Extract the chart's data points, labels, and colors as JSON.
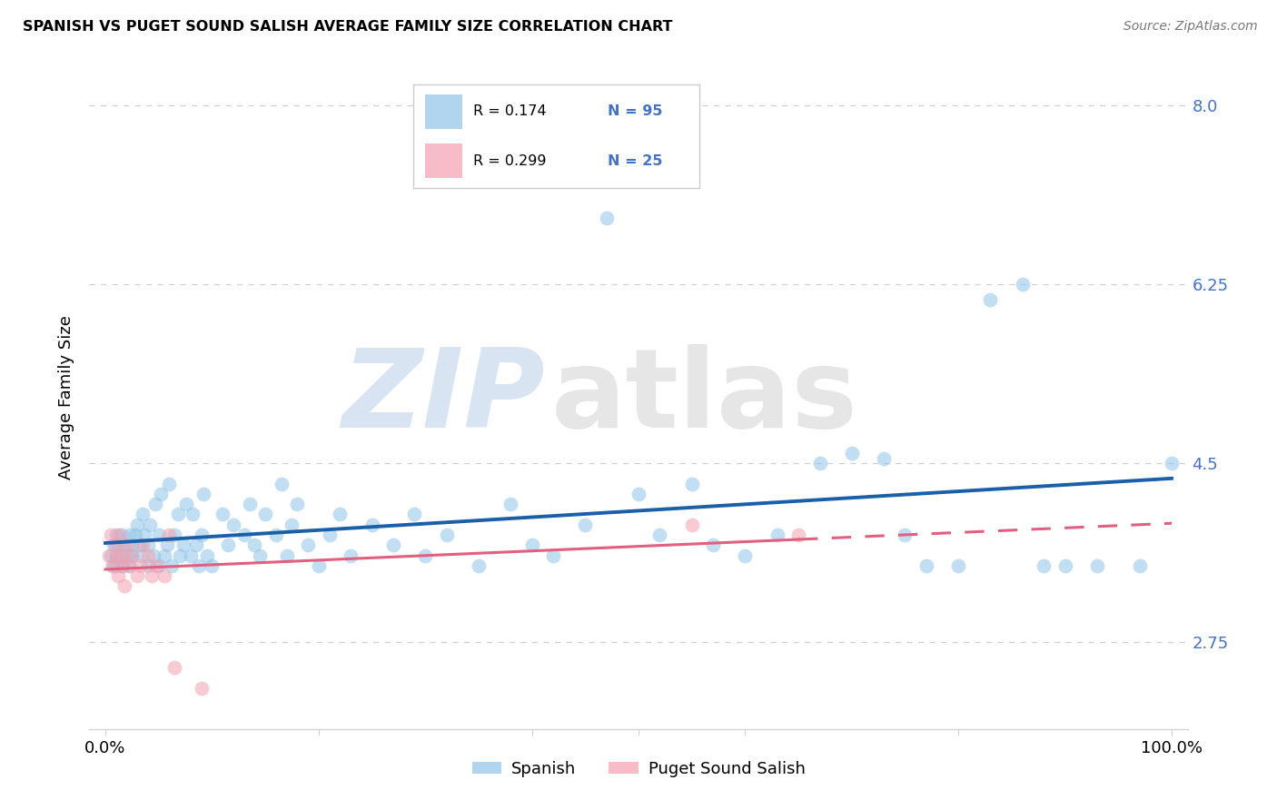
{
  "title": "SPANISH VS PUGET SOUND SALISH AVERAGE FAMILY SIZE CORRELATION CHART",
  "source": "Source: ZipAtlas.com",
  "ylabel": "Average Family Size",
  "ytick_values": [
    2.75,
    4.5,
    6.25,
    8.0
  ],
  "ymin": 1.9,
  "ymax": 8.4,
  "xmin": -0.015,
  "xmax": 1.015,
  "color_spanish": "#90c4e8",
  "color_salish": "#f4a0b0",
  "color_spanish_line": "#1a5fa8",
  "color_salish_line": "#e06080",
  "legend_box_color": "#cccccc",
  "grid_color": "#d0d0d0",
  "ytick_color": "#4472c4",
  "spanish_x": [
    0.005,
    0.007,
    0.008,
    0.01,
    0.01,
    0.01,
    0.012,
    0.015,
    0.015,
    0.016,
    0.018,
    0.02,
    0.022,
    0.023,
    0.025,
    0.025,
    0.028,
    0.03,
    0.032,
    0.033,
    0.035,
    0.037,
    0.04,
    0.04,
    0.042,
    0.045,
    0.047,
    0.05,
    0.05,
    0.052,
    0.055,
    0.058,
    0.06,
    0.062,
    0.065,
    0.068,
    0.07,
    0.073,
    0.076,
    0.08,
    0.082,
    0.085,
    0.088,
    0.09,
    0.092,
    0.095,
    0.1,
    0.11,
    0.115,
    0.12,
    0.13,
    0.135,
    0.14,
    0.145,
    0.15,
    0.16,
    0.165,
    0.17,
    0.175,
    0.18,
    0.19,
    0.2,
    0.21,
    0.22,
    0.23,
    0.25,
    0.27,
    0.29,
    0.3,
    0.32,
    0.35,
    0.38,
    0.4,
    0.42,
    0.45,
    0.47,
    0.5,
    0.52,
    0.55,
    0.57,
    0.6,
    0.63,
    0.67,
    0.7,
    0.73,
    0.75,
    0.77,
    0.8,
    0.83,
    0.86,
    0.88,
    0.9,
    0.93,
    0.97,
    1.0
  ],
  "spanish_y": [
    3.6,
    3.5,
    3.7,
    3.8,
    3.6,
    3.5,
    3.7,
    3.6,
    3.8,
    3.5,
    3.7,
    3.6,
    3.5,
    3.8,
    3.7,
    3.6,
    3.8,
    3.9,
    3.7,
    3.6,
    4.0,
    3.8,
    3.7,
    3.5,
    3.9,
    3.6,
    4.1,
    3.5,
    3.8,
    4.2,
    3.6,
    3.7,
    4.3,
    3.5,
    3.8,
    4.0,
    3.6,
    3.7,
    4.1,
    3.6,
    4.0,
    3.7,
    3.5,
    3.8,
    4.2,
    3.6,
    3.5,
    4.0,
    3.7,
    3.9,
    3.8,
    4.1,
    3.7,
    3.6,
    4.0,
    3.8,
    4.3,
    3.6,
    3.9,
    4.1,
    3.7,
    3.5,
    3.8,
    4.0,
    3.6,
    3.9,
    3.7,
    4.0,
    3.6,
    3.8,
    3.5,
    4.1,
    3.7,
    3.6,
    3.9,
    6.9,
    4.2,
    3.8,
    4.3,
    3.7,
    3.6,
    3.8,
    4.5,
    4.6,
    4.55,
    3.8,
    3.5,
    3.5,
    6.1,
    6.25,
    3.5,
    3.5,
    3.5,
    3.5,
    4.5
  ],
  "salish_x": [
    0.003,
    0.005,
    0.007,
    0.009,
    0.01,
    0.012,
    0.013,
    0.015,
    0.016,
    0.018,
    0.02,
    0.022,
    0.025,
    0.03,
    0.033,
    0.035,
    0.04,
    0.043,
    0.048,
    0.055,
    0.06,
    0.065,
    0.09,
    0.55,
    0.65
  ],
  "salish_y": [
    3.6,
    3.8,
    3.5,
    3.7,
    3.6,
    3.4,
    3.8,
    3.5,
    3.6,
    3.3,
    3.7,
    3.5,
    3.6,
    3.4,
    3.5,
    3.7,
    3.6,
    3.4,
    3.5,
    3.4,
    3.8,
    2.5,
    2.3,
    3.9,
    3.8
  ]
}
